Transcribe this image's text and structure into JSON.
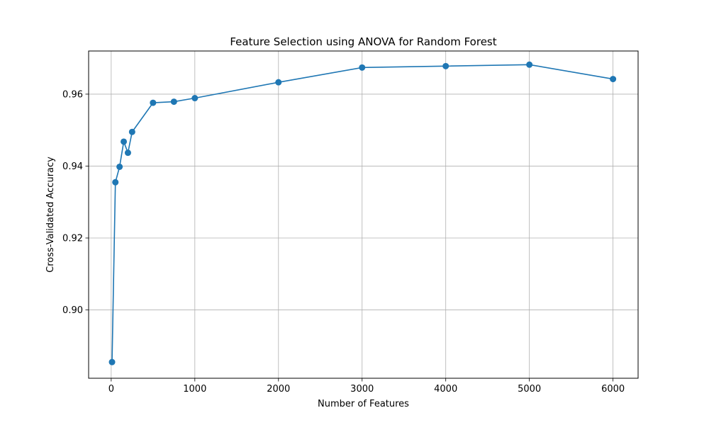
{
  "chart_data": {
    "type": "line",
    "title": "Feature Selection using ANOVA for Random Forest",
    "xlabel": "Number of Features",
    "ylabel": "Cross-Validated Accuracy",
    "xlim": [
      -270,
      6300
    ],
    "ylim": [
      0.881,
      0.972
    ],
    "xticks": [
      0,
      1000,
      2000,
      3000,
      4000,
      5000,
      6000
    ],
    "xtick_labels": [
      "0",
      "1000",
      "2000",
      "3000",
      "4000",
      "5000",
      "6000"
    ],
    "yticks": [
      0.9,
      0.92,
      0.94,
      0.96
    ],
    "ytick_labels": [
      "0.90",
      "0.92",
      "0.94",
      "0.96"
    ],
    "grid": true,
    "series": [
      {
        "color": "#1f77b4",
        "marker": "circle",
        "x": [
          10,
          50,
          100,
          150,
          200,
          250,
          500,
          750,
          1000,
          2000,
          3000,
          4000,
          5000,
          6000
        ],
        "y": [
          0.8855,
          0.9355,
          0.9398,
          0.9468,
          0.9437,
          0.9495,
          0.9576,
          0.9579,
          0.9589,
          0.9633,
          0.9674,
          0.9678,
          0.9682,
          0.9642
        ]
      }
    ]
  }
}
